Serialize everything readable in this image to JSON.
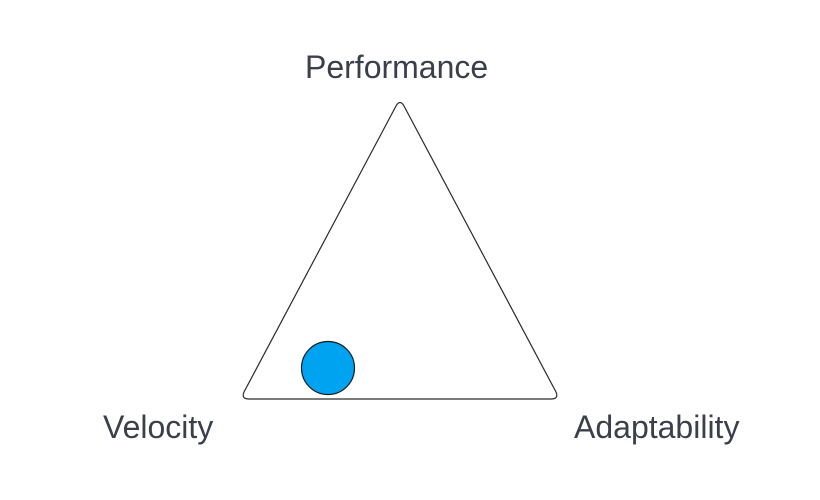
{
  "diagram": {
    "type": "ternary-tradeoff-triangle",
    "vertices": {
      "top": "Performance",
      "bottom_left": "Velocity",
      "bottom_right": "Adaptability"
    },
    "colors": {
      "triangle_stroke": "#2b2b2b",
      "marker_fill": "#00a3f0",
      "marker_stroke": "#1a1a1a",
      "label_text": "#3a3f4b"
    },
    "marker": {
      "shape": "circle",
      "nearest_vertex": "Velocity"
    }
  }
}
